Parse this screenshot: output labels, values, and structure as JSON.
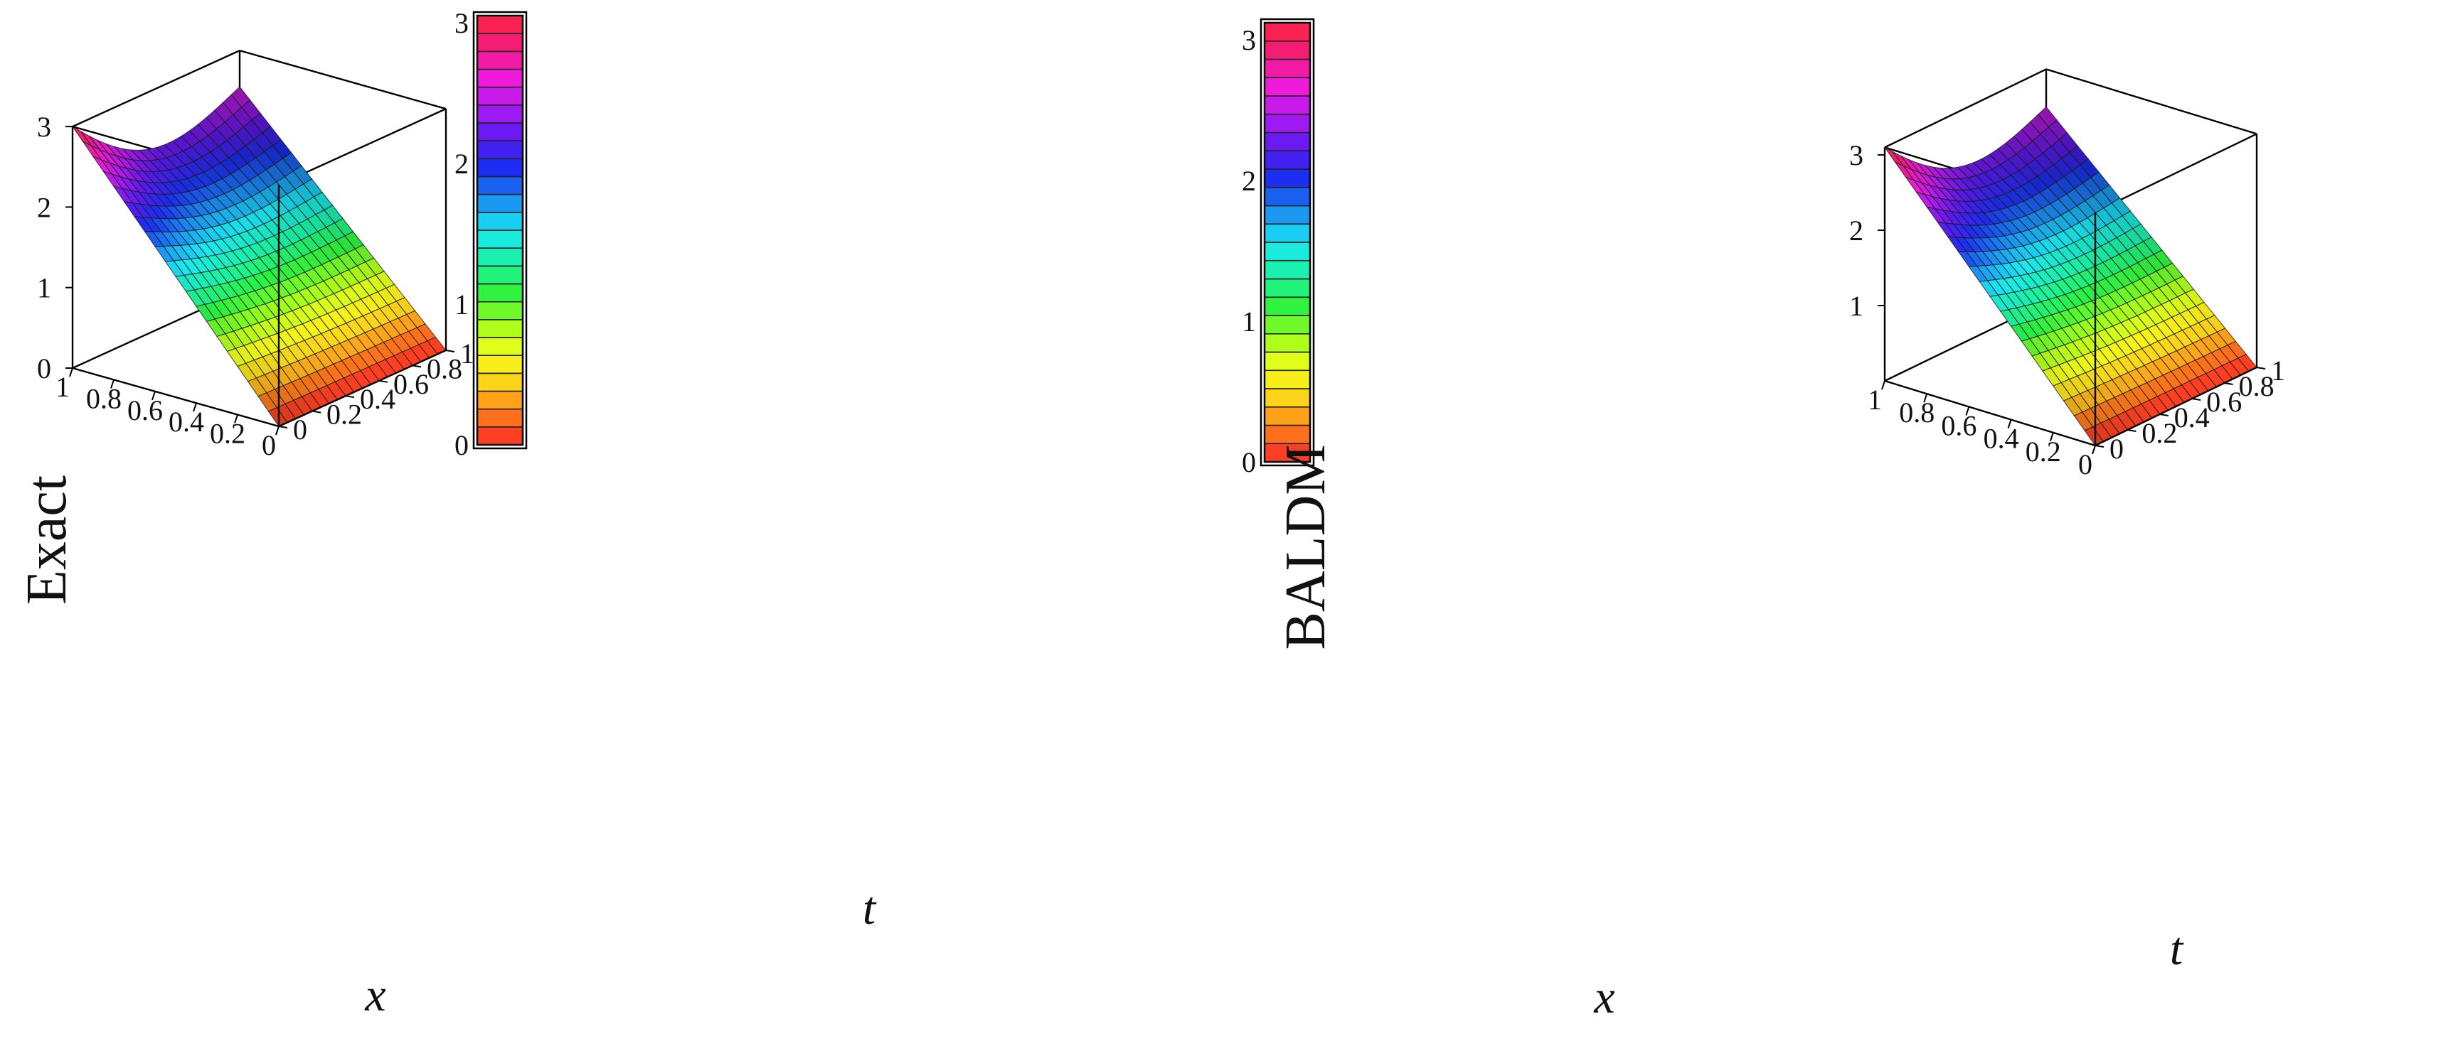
{
  "figure": {
    "panels": [
      {
        "id": "exact",
        "zlabel": "Exact",
        "xlabel": "x",
        "tlabel": "t",
        "x_ticks": [
          "1",
          "0.8",
          "0.6",
          "0.4",
          "0.2",
          "0"
        ],
        "t_ticks": [
          "0",
          "0.2",
          "0.4",
          "0.6",
          "0.8",
          "1"
        ],
        "z_ticks": [
          "0",
          "1",
          "2",
          "3"
        ],
        "colorbar_ticks": [
          "0",
          "1",
          "2",
          "3"
        ]
      },
      {
        "id": "baldm",
        "zlabel": "BALDM",
        "xlabel": "x",
        "tlabel": "t",
        "x_ticks": [
          "1",
          "0.8",
          "0.6",
          "0.4",
          "0.2",
          "0"
        ],
        "t_ticks": [
          "0",
          "0.2",
          "0.4",
          "0.6",
          "0.8",
          "1"
        ],
        "z_ticks": [
          "1",
          "2",
          "3"
        ],
        "colorbar_ticks": [
          "0",
          "1",
          "2",
          "3"
        ]
      }
    ]
  },
  "chart_data": [
    {
      "type": "surface",
      "title": "",
      "zlabel": "Exact",
      "xlabel": "x",
      "ylabel": "t",
      "xlim": [
        0,
        1
      ],
      "tlim": [
        0,
        1
      ],
      "zlim": [
        0,
        3
      ],
      "grid_resolution": [
        21,
        21
      ],
      "corner_values": {
        "x1_t0": 3.0,
        "x1_t1": 2.55,
        "x0_t0": 0.0,
        "x0_t1": 0.0
      },
      "colormap": [
        "#ff2626",
        "#ff7a1a",
        "#ffd21a",
        "#f2ff1a",
        "#9cff1a",
        "#2af241",
        "#1af2a8",
        "#1ae8f2",
        "#1a8cf2",
        "#1a2ef2",
        "#5a1af2",
        "#b01af2",
        "#f21ad9",
        "#f21a7a",
        "#ff2640"
      ],
      "colorbar_range": [
        0,
        3.05
      ]
    },
    {
      "type": "surface",
      "title": "",
      "zlabel": "BALDM",
      "xlabel": "x",
      "ylabel": "t",
      "xlim": [
        0,
        1
      ],
      "tlim": [
        0,
        1
      ],
      "zlim": [
        0,
        3.1
      ],
      "grid_resolution": [
        21,
        21
      ],
      "corner_values": {
        "x1_t0": 3.1,
        "x1_t1": 2.6,
        "x0_t0": 0.0,
        "x0_t1": 0.0
      },
      "colormap": [
        "#ff2626",
        "#ff7a1a",
        "#ffd21a",
        "#f2ff1a",
        "#9cff1a",
        "#2af241",
        "#1af2a8",
        "#1ae8f2",
        "#1a8cf2",
        "#1a2ef2",
        "#5a1af2",
        "#b01af2",
        "#f21ad9",
        "#f21a7a",
        "#ff2640"
      ],
      "colorbar_range": [
        0,
        3.12
      ]
    }
  ]
}
